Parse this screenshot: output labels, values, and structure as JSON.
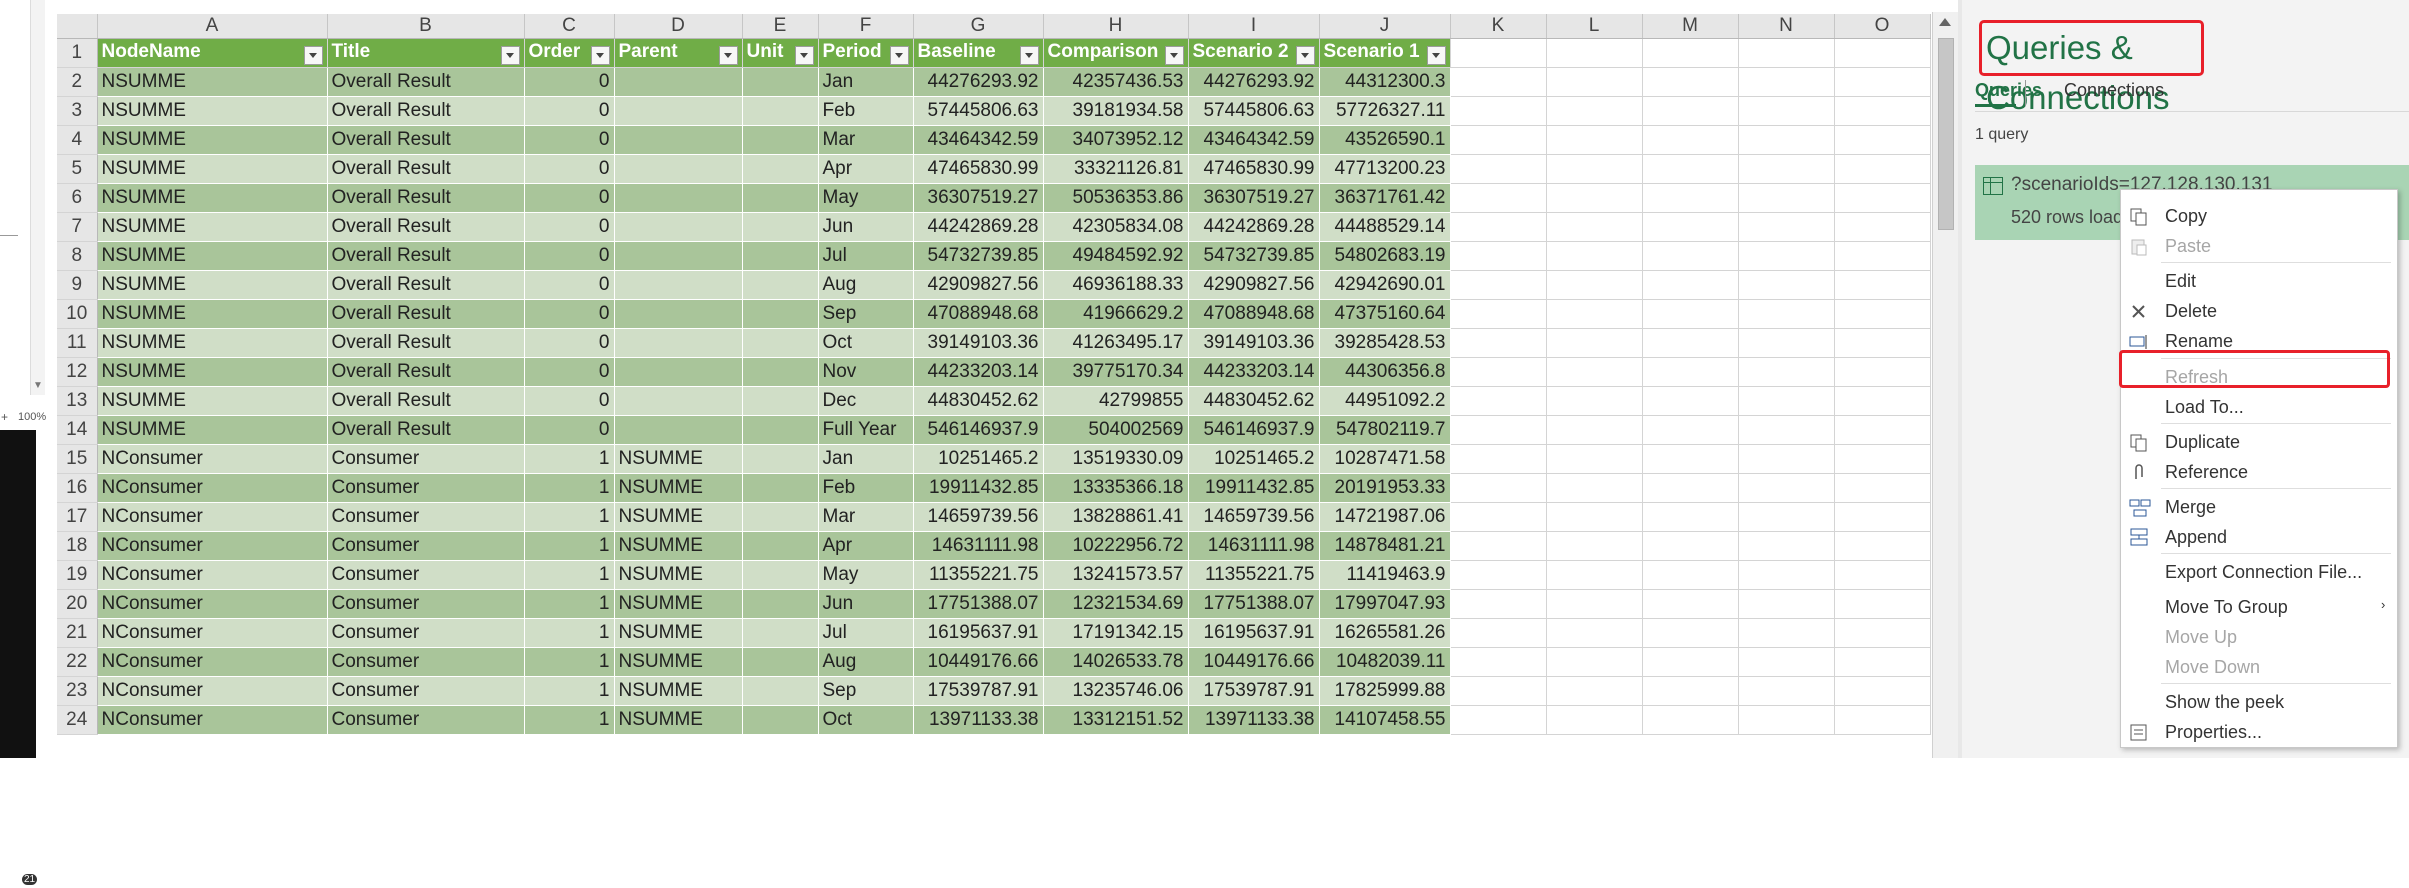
{
  "left_strip": {
    "zoom": "100%",
    "zoom_plus": "+",
    "notifications": "21"
  },
  "grid": {
    "column_letters": [
      "A",
      "B",
      "C",
      "D",
      "E",
      "F",
      "G",
      "H",
      "I",
      "J",
      "K",
      "L",
      "M",
      "N",
      "O"
    ],
    "header_row": [
      "NodeName",
      "Title",
      "Order",
      "Parent",
      "Unit",
      "Period",
      "Baseline",
      "Comparison",
      "Scenario 2",
      "Scenario 1"
    ],
    "rows": [
      [
        "2",
        "NSUMME",
        "Overall Result",
        "0",
        "",
        "",
        "Jan",
        "44276293.92",
        "42357436.53",
        "44276293.92",
        "44312300.3"
      ],
      [
        "3",
        "NSUMME",
        "Overall Result",
        "0",
        "",
        "",
        "Feb",
        "57445806.63",
        "39181934.58",
        "57445806.63",
        "57726327.11"
      ],
      [
        "4",
        "NSUMME",
        "Overall Result",
        "0",
        "",
        "",
        "Mar",
        "43464342.59",
        "34073952.12",
        "43464342.59",
        "43526590.1"
      ],
      [
        "5",
        "NSUMME",
        "Overall Result",
        "0",
        "",
        "",
        "Apr",
        "47465830.99",
        "33321126.81",
        "47465830.99",
        "47713200.23"
      ],
      [
        "6",
        "NSUMME",
        "Overall Result",
        "0",
        "",
        "",
        "May",
        "36307519.27",
        "50536353.86",
        "36307519.27",
        "36371761.42"
      ],
      [
        "7",
        "NSUMME",
        "Overall Result",
        "0",
        "",
        "",
        "Jun",
        "44242869.28",
        "42305834.08",
        "44242869.28",
        "44488529.14"
      ],
      [
        "8",
        "NSUMME",
        "Overall Result",
        "0",
        "",
        "",
        "Jul",
        "54732739.85",
        "49484592.92",
        "54732739.85",
        "54802683.19"
      ],
      [
        "9",
        "NSUMME",
        "Overall Result",
        "0",
        "",
        "",
        "Aug",
        "42909827.56",
        "46936188.33",
        "42909827.56",
        "42942690.01"
      ],
      [
        "10",
        "NSUMME",
        "Overall Result",
        "0",
        "",
        "",
        "Sep",
        "47088948.68",
        "41966629.2",
        "47088948.68",
        "47375160.64"
      ],
      [
        "11",
        "NSUMME",
        "Overall Result",
        "0",
        "",
        "",
        "Oct",
        "39149103.36",
        "41263495.17",
        "39149103.36",
        "39285428.53"
      ],
      [
        "12",
        "NSUMME",
        "Overall Result",
        "0",
        "",
        "",
        "Nov",
        "44233203.14",
        "39775170.34",
        "44233203.14",
        "44306356.8"
      ],
      [
        "13",
        "NSUMME",
        "Overall Result",
        "0",
        "",
        "",
        "Dec",
        "44830452.62",
        "42799855",
        "44830452.62",
        "44951092.2"
      ],
      [
        "14",
        "NSUMME",
        "Overall Result",
        "0",
        "",
        "",
        "Full Year",
        "546146937.9",
        "504002569",
        "546146937.9",
        "547802119.7"
      ],
      [
        "15",
        "NConsumer",
        "Consumer",
        "1",
        "NSUMME",
        "",
        "Jan",
        "10251465.2",
        "13519330.09",
        "10251465.2",
        "10287471.58"
      ],
      [
        "16",
        "NConsumer",
        "Consumer",
        "1",
        "NSUMME",
        "",
        "Feb",
        "19911432.85",
        "13335366.18",
        "19911432.85",
        "20191953.33"
      ],
      [
        "17",
        "NConsumer",
        "Consumer",
        "1",
        "NSUMME",
        "",
        "Mar",
        "14659739.56",
        "13828861.41",
        "14659739.56",
        "14721987.06"
      ],
      [
        "18",
        "NConsumer",
        "Consumer",
        "1",
        "NSUMME",
        "",
        "Apr",
        "14631111.98",
        "10222956.72",
        "14631111.98",
        "14878481.21"
      ],
      [
        "19",
        "NConsumer",
        "Consumer",
        "1",
        "NSUMME",
        "",
        "May",
        "11355221.75",
        "13241573.57",
        "11355221.75",
        "11419463.9"
      ],
      [
        "20",
        "NConsumer",
        "Consumer",
        "1",
        "NSUMME",
        "",
        "Jun",
        "17751388.07",
        "12321534.69",
        "17751388.07",
        "17997047.93"
      ],
      [
        "21",
        "NConsumer",
        "Consumer",
        "1",
        "NSUMME",
        "",
        "Jul",
        "16195637.91",
        "17191342.15",
        "16195637.91",
        "16265581.26"
      ],
      [
        "22",
        "NConsumer",
        "Consumer",
        "1",
        "NSUMME",
        "",
        "Aug",
        "10449176.66",
        "14026533.78",
        "10449176.66",
        "10482039.11"
      ],
      [
        "23",
        "NConsumer",
        "Consumer",
        "1",
        "NSUMME",
        "",
        "Sep",
        "17539787.91",
        "13235746.06",
        "17539787.91",
        "17825999.88"
      ],
      [
        "24",
        "NConsumer",
        "Consumer",
        "1",
        "NSUMME",
        "",
        "Oct",
        "13971133.38",
        "13312151.52",
        "13971133.38",
        "14107458.55"
      ]
    ]
  },
  "queries_pane": {
    "title": "Queries & Connections",
    "tab_queries": "Queries",
    "tab_connections": "Connections",
    "count": "1 query",
    "query_name": "?scenarioIds=127,128,130,131",
    "query_status": "520 rows loaded."
  },
  "context_menu": {
    "items": [
      {
        "label": "Copy",
        "icon": "copy-icon",
        "disabled": false
      },
      {
        "label": "Paste",
        "icon": "paste-icon",
        "disabled": true
      },
      {
        "label": "Edit",
        "icon": "",
        "disabled": false
      },
      {
        "label": "Delete",
        "icon": "delete-x-icon",
        "disabled": false
      },
      {
        "label": "Rename",
        "icon": "rename-icon",
        "disabled": false
      },
      {
        "label": "Refresh",
        "icon": "",
        "disabled": true
      },
      {
        "label": "Load To...",
        "icon": "",
        "disabled": false
      },
      {
        "label": "Duplicate",
        "icon": "duplicate-icon",
        "disabled": false
      },
      {
        "label": "Reference",
        "icon": "paperclip-icon",
        "disabled": false
      },
      {
        "label": "Merge",
        "icon": "merge-icon",
        "disabled": false
      },
      {
        "label": "Append",
        "icon": "append-icon",
        "disabled": false
      },
      {
        "label": "Export Connection File...",
        "icon": "",
        "disabled": false
      },
      {
        "label": "Move To Group",
        "icon": "",
        "disabled": false,
        "submenu": true
      },
      {
        "label": "Move Up",
        "icon": "",
        "disabled": true
      },
      {
        "label": "Move Down",
        "icon": "",
        "disabled": true
      },
      {
        "label": "Show the peek",
        "icon": "",
        "disabled": false
      },
      {
        "label": "Properties...",
        "icon": "properties-icon",
        "disabled": false
      }
    ],
    "submenu_arrow": "›"
  },
  "colors": {
    "table_header": "#70ad47",
    "band_dark": "#a9c59a",
    "band_light": "#d0dec7",
    "accent_green": "#217346",
    "highlight_red": "#e8202a"
  }
}
